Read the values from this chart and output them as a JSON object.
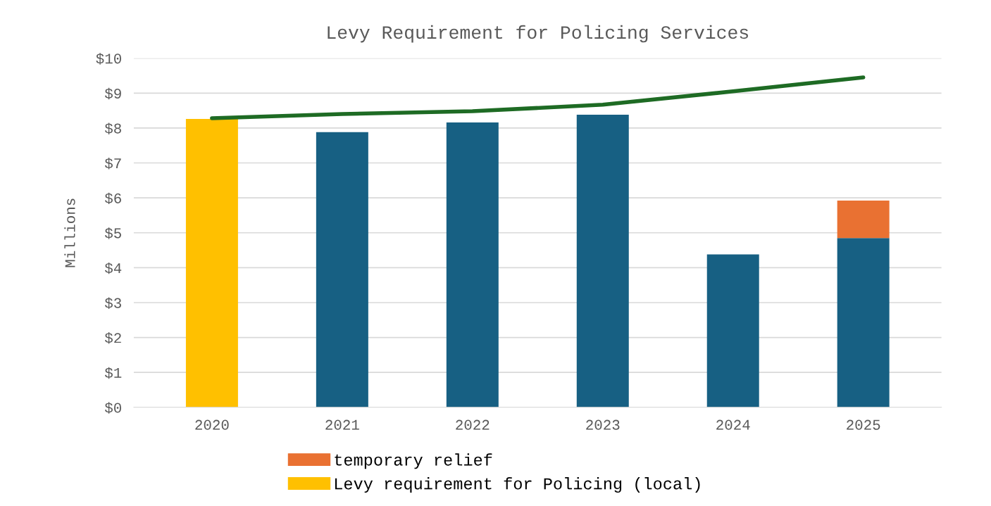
{
  "chart_data": {
    "type": "bar",
    "title": "Levy Requirement for Policing Services",
    "ylabel": "Millions",
    "categories": [
      "2020",
      "2021",
      "2022",
      "2023",
      "2024",
      "2025"
    ],
    "stacked": true,
    "series": [
      {
        "name": "Levy requirement for Policing (local)",
        "color": "#ffc000",
        "values": [
          8.26,
          null,
          null,
          null,
          null,
          null
        ]
      },
      {
        "color": "#176083",
        "values": [
          null,
          7.88,
          8.16,
          8.38,
          4.38,
          4.85
        ]
      },
      {
        "name": "temporary relief",
        "color": "#e97132",
        "values": [
          null,
          null,
          null,
          null,
          null,
          1.07
        ]
      },
      {
        "type": "line",
        "color": "#1e6b24",
        "values": [
          8.28,
          8.4,
          8.48,
          8.67,
          9.05,
          9.45
        ]
      }
    ],
    "ylim": [
      0,
      10
    ],
    "yticks": [
      {
        "value": 0,
        "label": "$0"
      },
      {
        "value": 1,
        "label": "$1"
      },
      {
        "value": 2,
        "label": "$2"
      },
      {
        "value": 3,
        "label": "$3"
      },
      {
        "value": 4,
        "label": "$4"
      },
      {
        "value": 5,
        "label": "$5"
      },
      {
        "value": 6,
        "label": "$6"
      },
      {
        "value": 7,
        "label": "$7"
      },
      {
        "value": 8,
        "label": "$8"
      },
      {
        "value": 9,
        "label": "$9"
      },
      {
        "value": 10,
        "label": "$10"
      }
    ],
    "grid": "y",
    "legend": "bottom"
  }
}
